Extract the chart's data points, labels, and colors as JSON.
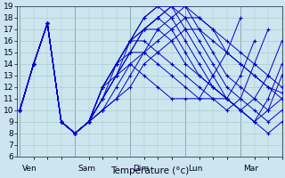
{
  "bg_color": "#cce5ee",
  "grid_color": "#aacccc",
  "line_color": "#0000cc",
  "xlabel": "Température (°c)",
  "ylim": [
    6,
    19
  ],
  "yticks": [
    6,
    7,
    8,
    9,
    10,
    11,
    12,
    13,
    14,
    15,
    16,
    17,
    18,
    19
  ],
  "day_positions": [
    0.0,
    1.0,
    2.0,
    3.0,
    4.0
  ],
  "day_labels": [
    "Ven",
    "Sam",
    "Dim",
    "Lun",
    "Mar"
  ],
  "series": [
    [
      10,
      14,
      17.5,
      9,
      8,
      9,
      10,
      11,
      12,
      14,
      15,
      16,
      17,
      17,
      16,
      15,
      14,
      13,
      12,
      11,
      10.5
    ],
    [
      10,
      14,
      17.5,
      9,
      8,
      9,
      10,
      11,
      13,
      15,
      16,
      17,
      18,
      18,
      17,
      16,
      15,
      14,
      13,
      12,
      11
    ],
    [
      10,
      14,
      17.5,
      9,
      8,
      9,
      10,
      12,
      14,
      15,
      17,
      18,
      19,
      18,
      17,
      15,
      14,
      13,
      12,
      11.5
    ],
    [
      10,
      14,
      17.5,
      9,
      8,
      9,
      11,
      13,
      15,
      17,
      18,
      19,
      19,
      17,
      15,
      13,
      12,
      11,
      10,
      11,
      13
    ],
    [
      10,
      14,
      17.5,
      9,
      8,
      9,
      11,
      13,
      15,
      17,
      18,
      19,
      18,
      16,
      14,
      12,
      11,
      10,
      9,
      10
    ],
    [
      10,
      14,
      17.5,
      9,
      8,
      9,
      11,
      13,
      16,
      18,
      19,
      19,
      17,
      15,
      13,
      11,
      10,
      9,
      8,
      9
    ],
    [
      10,
      14,
      17.5,
      9,
      8,
      9,
      11,
      14,
      16,
      18,
      19,
      18,
      16,
      14,
      12,
      11,
      10,
      9,
      11,
      14
    ],
    [
      10,
      14,
      17.5,
      9,
      8,
      9,
      12,
      14,
      16,
      17,
      18,
      17,
      15,
      13,
      12,
      11,
      10,
      9,
      10,
      13,
      16
    ],
    [
      10,
      14,
      17.5,
      9,
      8,
      9,
      12,
      14,
      16,
      17,
      17,
      16,
      14,
      13,
      12,
      11,
      10,
      11,
      13,
      16
    ],
    [
      10,
      14,
      17.5,
      9,
      8,
      9,
      12,
      14,
      16,
      16,
      15,
      14,
      13,
      12,
      11,
      10,
      11,
      14,
      17
    ],
    [
      10,
      14,
      17.5,
      9,
      8,
      9,
      12,
      14,
      15,
      15,
      14,
      13,
      12,
      11,
      11,
      11,
      13,
      16
    ],
    [
      10,
      14,
      17.5,
      9,
      8,
      9,
      12,
      13,
      14,
      13,
      12,
      11,
      11,
      11,
      13,
      15,
      18
    ]
  ],
  "x_steps": [
    [
      0,
      0.25,
      0.5,
      0.75,
      1.0,
      1.25,
      1.5,
      1.75,
      2.0,
      2.25,
      2.5,
      2.75,
      3.0,
      3.25,
      3.5,
      3.75,
      4.0,
      4.25,
      4.5,
      4.75,
      5.0
    ],
    [
      0,
      0.25,
      0.5,
      0.75,
      1.0,
      1.25,
      1.5,
      1.75,
      2.0,
      2.25,
      2.5,
      2.75,
      3.0,
      3.25,
      3.5,
      3.75,
      4.0,
      4.25,
      4.5,
      4.75,
      5.0
    ],
    [
      0,
      0.25,
      0.5,
      0.75,
      1.0,
      1.25,
      1.5,
      1.75,
      2.0,
      2.25,
      2.5,
      2.75,
      3.0,
      3.25,
      3.5,
      3.75,
      4.0,
      4.25,
      4.5,
      4.75
    ],
    [
      0,
      0.25,
      0.5,
      0.75,
      1.0,
      1.25,
      1.5,
      1.75,
      2.0,
      2.25,
      2.5,
      2.75,
      3.0,
      3.25,
      3.5,
      3.75,
      4.0,
      4.25,
      4.5,
      4.75,
      5.0
    ],
    [
      0,
      0.25,
      0.5,
      0.75,
      1.0,
      1.25,
      1.5,
      1.75,
      2.0,
      2.25,
      2.5,
      2.75,
      3.0,
      3.25,
      3.5,
      3.75,
      4.0,
      4.25,
      4.5,
      4.75
    ],
    [
      0,
      0.25,
      0.5,
      0.75,
      1.0,
      1.25,
      1.5,
      1.75,
      2.0,
      2.25,
      2.5,
      2.75,
      3.0,
      3.25,
      3.5,
      3.75,
      4.0,
      4.25,
      4.5,
      4.75
    ],
    [
      0,
      0.25,
      0.5,
      0.75,
      1.0,
      1.25,
      1.5,
      1.75,
      2.0,
      2.25,
      2.5,
      2.75,
      3.0,
      3.25,
      3.5,
      3.75,
      4.0,
      4.25,
      4.5,
      4.75
    ],
    [
      0,
      0.25,
      0.5,
      0.75,
      1.0,
      1.25,
      1.5,
      1.75,
      2.0,
      2.25,
      2.5,
      2.75,
      3.0,
      3.25,
      3.5,
      3.75,
      4.0,
      4.25,
      4.5,
      4.75,
      5.0
    ],
    [
      0,
      0.25,
      0.5,
      0.75,
      1.0,
      1.25,
      1.5,
      1.75,
      2.0,
      2.25,
      2.5,
      2.75,
      3.0,
      3.25,
      3.5,
      3.75,
      4.0,
      4.25,
      4.5,
      4.75
    ],
    [
      0,
      0.25,
      0.5,
      0.75,
      1.0,
      1.25,
      1.5,
      1.75,
      2.0,
      2.25,
      2.5,
      2.75,
      3.0,
      3.25,
      3.5,
      3.75,
      4.0,
      4.25,
      4.5
    ],
    [
      0,
      0.25,
      0.5,
      0.75,
      1.0,
      1.25,
      1.5,
      1.75,
      2.0,
      2.25,
      2.5,
      2.75,
      3.0,
      3.25,
      3.5,
      3.75,
      4.0,
      4.25
    ],
    [
      0,
      0.25,
      0.5,
      0.75,
      1.0,
      1.25,
      1.5,
      1.75,
      2.0,
      2.25,
      2.5,
      2.75,
      3.0,
      3.25,
      3.5,
      3.75,
      4.0
    ]
  ]
}
